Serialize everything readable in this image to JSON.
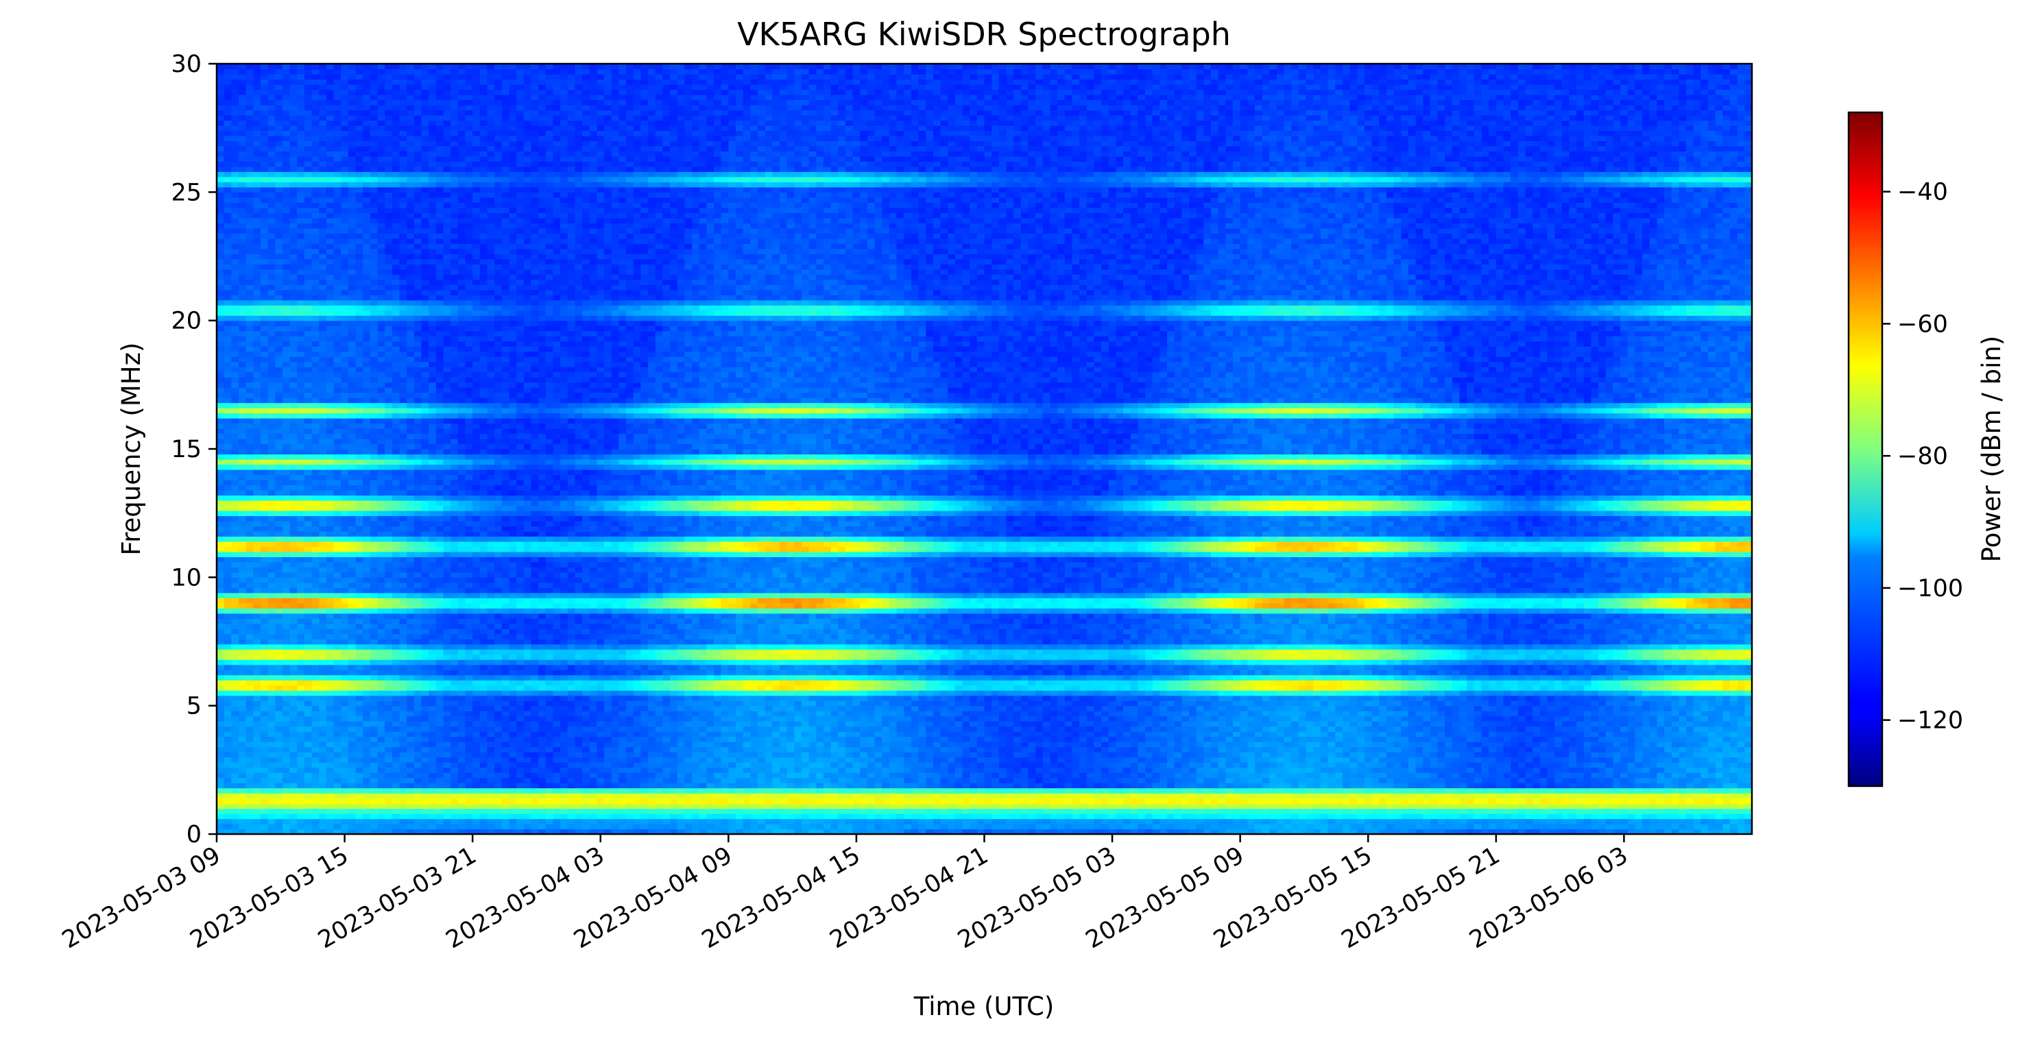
{
  "chart_data": {
    "type": "heatmap",
    "title": "VK5ARG KiwiSDR Spectrograph",
    "xlabel": "Time (UTC)",
    "ylabel": "Frequency (MHz)",
    "colorbar_label": "Power (dBm / bin)",
    "colormap": "jet",
    "grid": false,
    "x_unit_hours_per_tick": 6,
    "xlim": [
      "2023-05-03 09",
      "2023-05-06 09"
    ],
    "x_ticks": [
      "2023-05-03 09",
      "2023-05-03 15",
      "2023-05-03 21",
      "2023-05-04 03",
      "2023-05-04 09",
      "2023-05-04 15",
      "2023-05-04 21",
      "2023-05-05 03",
      "2023-05-05 09",
      "2023-05-05 15",
      "2023-05-05 21",
      "2023-05-06 03"
    ],
    "ylim": [
      0,
      30
    ],
    "y_ticks": [
      "0",
      "5",
      "10",
      "15",
      "20",
      "25",
      "30"
    ],
    "clim": [
      -130,
      -28
    ],
    "colorbar_ticks": [
      "−120",
      "−100",
      "−80",
      "−60",
      "−40"
    ],
    "colorbar_tick_values": [
      -120,
      -100,
      -80,
      -60,
      -40
    ],
    "background_power": -112,
    "bands": [
      {
        "freq": 0.4,
        "power": -100
      },
      {
        "freq": 0.8,
        "power": -88
      },
      {
        "freq": 1.1,
        "power": -72
      },
      {
        "freq": 1.3,
        "power": -66
      },
      {
        "freq": 1.5,
        "power": -70
      },
      {
        "freq": 5.8,
        "power": -52
      },
      {
        "freq": 7.0,
        "power": -58
      },
      {
        "freq": 9.0,
        "power": -42
      },
      {
        "freq": 11.2,
        "power": -48
      },
      {
        "freq": 12.8,
        "power": -55
      },
      {
        "freq": 14.5,
        "power": -72
      },
      {
        "freq": 16.5,
        "power": -70
      },
      {
        "freq": 20.4,
        "power": -82
      },
      {
        "freq": 25.5,
        "power": -88
      }
    ],
    "daylight_centers": [
      "2023-05-03 12",
      "2023-05-04 12",
      "2023-05-05 12",
      "2023-05-06 09"
    ]
  }
}
